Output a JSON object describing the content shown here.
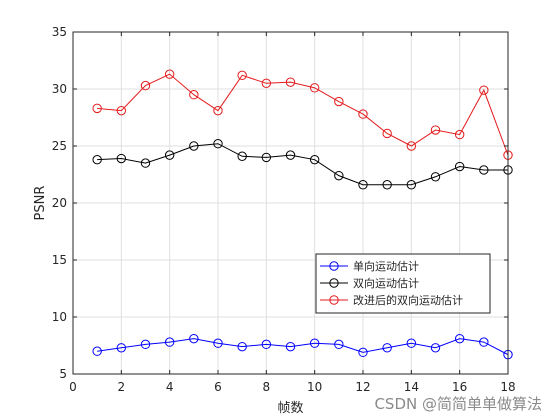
{
  "chart_data": {
    "type": "line",
    "title": "",
    "xlabel": "帧数",
    "ylabel": "PSNR",
    "xlim": [
      0,
      18
    ],
    "ylim": [
      5,
      35
    ],
    "xticks": [
      0,
      2,
      4,
      6,
      8,
      10,
      12,
      14,
      16,
      18
    ],
    "yticks": [
      5,
      10,
      15,
      20,
      25,
      30,
      35
    ],
    "grid": true,
    "legend_position": "lower-right",
    "marker": "circle",
    "x": [
      1,
      2,
      3,
      4,
      5,
      6,
      7,
      8,
      9,
      10,
      11,
      12,
      13,
      14,
      15,
      16,
      17,
      18
    ],
    "series": [
      {
        "name": "单向运动估计",
        "color": "#0000ff",
        "values": [
          7.0,
          7.3,
          7.6,
          7.8,
          8.1,
          7.7,
          7.4,
          7.6,
          7.4,
          7.7,
          7.6,
          6.9,
          7.3,
          7.7,
          7.3,
          8.1,
          7.8,
          6.7
        ]
      },
      {
        "name": "双向运动估计",
        "color": "#000000",
        "values": [
          23.8,
          23.9,
          23.5,
          24.2,
          25.0,
          25.2,
          24.1,
          24.0,
          24.2,
          23.8,
          22.4,
          21.6,
          21.6,
          21.6,
          22.3,
          23.2,
          22.9,
          22.9
        ]
      },
      {
        "name": "改进后的双向运动估计",
        "color": "#e41a1c",
        "values": [
          28.3,
          28.1,
          30.3,
          31.3,
          29.5,
          28.1,
          31.2,
          30.5,
          30.6,
          30.1,
          28.9,
          27.8,
          26.1,
          25.0,
          26.4,
          26.0,
          29.9,
          24.2
        ]
      }
    ]
  },
  "watermark": "CSDN @简简单单做算法"
}
